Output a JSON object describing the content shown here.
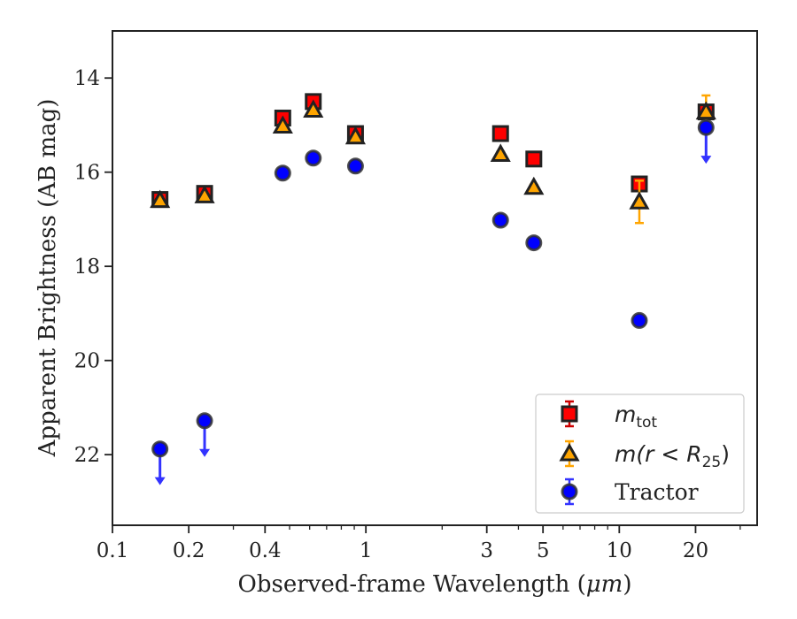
{
  "chart_data": {
    "type": "scatter",
    "xlabel_prefix": "Observed-frame Wavelength (",
    "xlabel_unit": "μm",
    "xlabel_suffix": ")",
    "ylabel": "Apparent Brightness (AB mag)",
    "x_scale": "log",
    "xlim": [
      0.1,
      35
    ],
    "ylim": [
      23.5,
      13
    ],
    "y_inverted": true,
    "x_ticks": [
      {
        "value": 0.1,
        "label": "0.1"
      },
      {
        "value": 0.2,
        "label": "0.2"
      },
      {
        "value": 0.4,
        "label": "0.4"
      },
      {
        "value": 1,
        "label": "1"
      },
      {
        "value": 3,
        "label": "3"
      },
      {
        "value": 5,
        "label": "5"
      },
      {
        "value": 10,
        "label": "10"
      },
      {
        "value": 20,
        "label": "20"
      }
    ],
    "x_minor_ticks": [
      0.3,
      0.5,
      0.6,
      0.7,
      0.8,
      0.9,
      2,
      4,
      6,
      7,
      8,
      9,
      30
    ],
    "y_ticks": [
      {
        "value": 14,
        "label": "14"
      },
      {
        "value": 16,
        "label": "16"
      },
      {
        "value": 18,
        "label": "18"
      },
      {
        "value": 20,
        "label": "20"
      },
      {
        "value": 22,
        "label": "22"
      }
    ],
    "grid": false,
    "legend_position": "lower-right",
    "series": [
      {
        "key": "mtot",
        "label_main": "m",
        "label_sub": "tot",
        "marker": "square",
        "color": "#ff0000",
        "edge_color": "#222222",
        "error_color": "#cc0000",
        "points": [
          {
            "x": 0.154,
            "y": 16.58,
            "err": 0.1
          },
          {
            "x": 0.231,
            "y": 16.45,
            "err": 0.1
          },
          {
            "x": 0.47,
            "y": 14.85,
            "err": 0.1
          },
          {
            "x": 0.62,
            "y": 14.5,
            "err": 0.1
          },
          {
            "x": 0.91,
            "y": 15.18,
            "err": 0.1
          },
          {
            "x": 3.4,
            "y": 15.18,
            "err": 0.05
          },
          {
            "x": 4.6,
            "y": 15.72,
            "err": 0.05
          },
          {
            "x": 12.0,
            "y": 16.25,
            "err": 0.1
          },
          {
            "x": 22.0,
            "y": 14.72,
            "err": 0.1
          }
        ]
      },
      {
        "key": "mr25",
        "label_main": "m(r < R",
        "label_sub": "25",
        "label_end": ")",
        "marker": "triangle",
        "color": "#ffa500",
        "edge_color": "#222222",
        "error_color": "#ffa500",
        "points": [
          {
            "x": 0.154,
            "y": 16.6,
            "err": 0.05
          },
          {
            "x": 0.231,
            "y": 16.5,
            "err": 0.05
          },
          {
            "x": 0.47,
            "y": 15.02,
            "err": 0.05
          },
          {
            "x": 0.62,
            "y": 14.68,
            "err": 0.05
          },
          {
            "x": 0.91,
            "y": 15.25,
            "err": 0.05
          },
          {
            "x": 3.4,
            "y": 15.62,
            "err": 0.05
          },
          {
            "x": 4.6,
            "y": 16.32,
            "err": 0.05
          },
          {
            "x": 12.0,
            "y": 16.63,
            "err": 0.45
          },
          {
            "x": 22.0,
            "y": 14.72,
            "err": 0.35
          }
        ]
      },
      {
        "key": "tractor",
        "label_main": "Tractor",
        "marker": "circle",
        "color": "#0000ff",
        "edge_color": "#333333",
        "error_color": "#3333ff",
        "points": [
          {
            "x": 0.154,
            "y": 21.88,
            "upper_limit": true
          },
          {
            "x": 0.231,
            "y": 21.28,
            "upper_limit": true
          },
          {
            "x": 0.47,
            "y": 16.02,
            "err": 0.05
          },
          {
            "x": 0.62,
            "y": 15.7,
            "err": 0.05
          },
          {
            "x": 0.91,
            "y": 15.87,
            "err": 0.05
          },
          {
            "x": 3.4,
            "y": 17.02,
            "err": 0.05
          },
          {
            "x": 4.6,
            "y": 17.5,
            "err": 0.05
          },
          {
            "x": 12.0,
            "y": 19.15,
            "err": 0.05
          },
          {
            "x": 22.0,
            "y": 15.05,
            "upper_limit": true
          }
        ]
      }
    ]
  }
}
